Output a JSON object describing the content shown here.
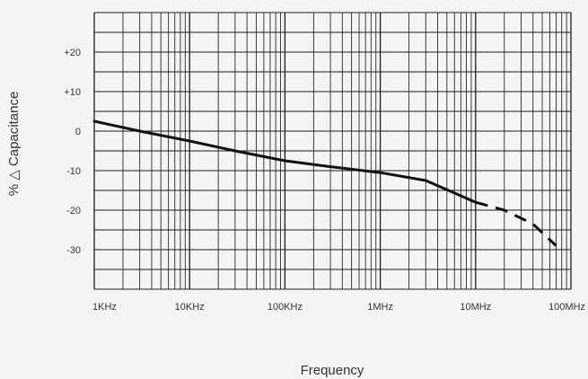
{
  "chart_data": {
    "type": "line",
    "x_scale": "log",
    "x_tick_values": [
      1000,
      10000,
      100000,
      1000000,
      10000000,
      100000000
    ],
    "x_tick_labels": [
      "1KHz",
      "10KHz",
      "100KHz",
      "1MHz",
      "10MHz",
      "100MHz"
    ],
    "xlim": [
      1000,
      100000000
    ],
    "ylim": [
      -40,
      30
    ],
    "y_tick_values": [
      20,
      10,
      0,
      -10,
      -20,
      -30
    ],
    "y_tick_labels": [
      "+20",
      "+10",
      "0",
      "-10",
      "-20",
      "-30"
    ],
    "xlabel": "Frequency",
    "ylabel": "% △ Capacitance",
    "grid": true,
    "series": [
      {
        "style": "solid",
        "points": [
          [
            1000,
            2.5
          ],
          [
            3000,
            0
          ],
          [
            10000,
            -2.5
          ],
          [
            30000,
            -5
          ],
          [
            100000,
            -7.5
          ],
          [
            300000,
            -9
          ],
          [
            1000000,
            -10.5
          ],
          [
            3000000,
            -12.5
          ],
          [
            10000000,
            -18
          ]
        ]
      },
      {
        "style": "dashed",
        "points": [
          [
            10000000,
            -18
          ],
          [
            20000000,
            -20
          ],
          [
            40000000,
            -23.5
          ],
          [
            70000000,
            -29
          ]
        ]
      }
    ]
  }
}
